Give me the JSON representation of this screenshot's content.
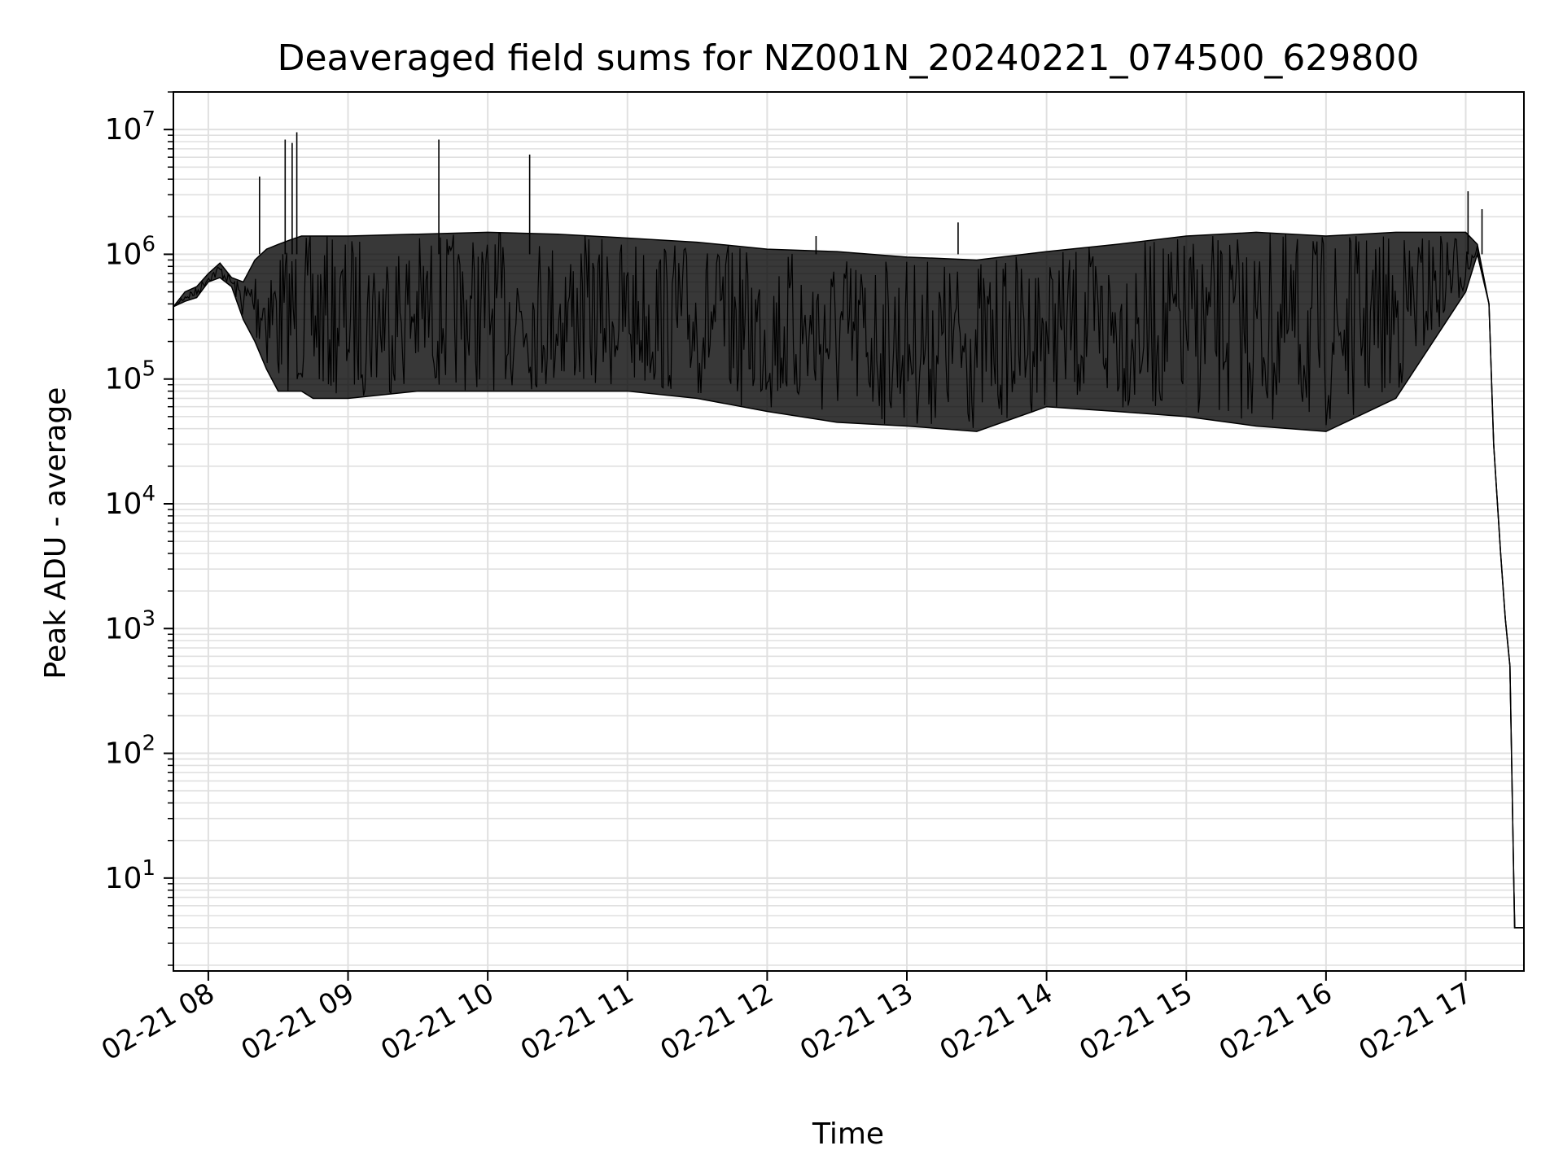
{
  "chart_data": {
    "type": "line",
    "title": "Deaveraged field sums for NZ001N_20240221_074500_629800",
    "xlabel": "Time",
    "ylabel": "Peak ADU - average",
    "yscale": "log",
    "grid": true,
    "grid_which": "both",
    "line_color": "#000000",
    "grid_color": "#e0e0e0",
    "xlim": [
      "2024-02-21 07:45",
      "2024-02-21 17:25"
    ],
    "ylim": [
      1.8,
      20000000
    ],
    "x_ticks": [
      "2024-02-21 08:00",
      "2024-02-21 09:00",
      "2024-02-21 10:00",
      "2024-02-21 11:00",
      "2024-02-21 12:00",
      "2024-02-21 13:00",
      "2024-02-21 14:00",
      "2024-02-21 15:00",
      "2024-02-21 16:00",
      "2024-02-21 17:00"
    ],
    "x_tick_labels": [
      "02-21 08",
      "02-21 09",
      "02-21 10",
      "02-21 11",
      "02-21 12",
      "02-21 13",
      "02-21 14",
      "02-21 15",
      "02-21 16",
      "02-21 17"
    ],
    "y_ticks": [
      {
        "value": 10,
        "base": "10",
        "exp": "1"
      },
      {
        "value": 100,
        "base": "10",
        "exp": "2"
      },
      {
        "value": 1000,
        "base": "10",
        "exp": "3"
      },
      {
        "value": 10000,
        "base": "10",
        "exp": "4"
      },
      {
        "value": 100000,
        "base": "10",
        "exp": "5"
      },
      {
        "value": 1000000,
        "base": "10",
        "exp": "6"
      },
      {
        "value": 10000000,
        "base": "10",
        "exp": "7"
      }
    ],
    "series": [
      {
        "x": [
          "2024-02-21 07:45",
          "2024-02-21 07:50",
          "2024-02-21 07:55",
          "2024-02-21 08:00",
          "2024-02-21 08:05",
          "2024-02-21 08:10",
          "2024-02-21 08:15",
          "2024-02-21 08:20",
          "2024-02-21 08:25",
          "2024-02-21 08:30",
          "2024-02-21 08:35",
          "2024-02-21 08:40",
          "2024-02-21 08:45",
          "2024-02-21 09:00",
          "2024-02-21 09:30",
          "2024-02-21 10:00",
          "2024-02-21 10:30",
          "2024-02-21 11:00",
          "2024-02-21 11:30",
          "2024-02-21 12:00",
          "2024-02-21 12:30",
          "2024-02-21 13:00",
          "2024-02-21 13:30",
          "2024-02-21 14:00",
          "2024-02-21 14:30",
          "2024-02-21 15:00",
          "2024-02-21 15:30",
          "2024-02-21 16:00",
          "2024-02-21 16:30",
          "2024-02-21 17:00",
          "2024-02-21 17:05",
          "2024-02-21 17:10",
          "2024-02-21 17:12",
          "2024-02-21 17:15",
          "2024-02-21 17:17",
          "2024-02-21 17:19",
          "2024-02-21 17:21",
          "2024-02-21 17:25"
        ],
        "upper": [
          380000,
          500000,
          550000,
          700000,
          850000,
          650000,
          600000,
          900000,
          1100000,
          1200000,
          1300000,
          1400000,
          1400000,
          1400000,
          1450000,
          1500000,
          1450000,
          1350000,
          1250000,
          1100000,
          1050000,
          950000,
          900000,
          1050000,
          1200000,
          1400000,
          1500000,
          1400000,
          1500000,
          1500000,
          1200000,
          400000,
          30000,
          4000,
          1200,
          500,
          4,
          4
        ],
        "lower": [
          380000,
          420000,
          450000,
          600000,
          650000,
          550000,
          300000,
          200000,
          120000,
          80000,
          80000,
          80000,
          70000,
          70000,
          80000,
          80000,
          80000,
          80000,
          70000,
          55000,
          45000,
          42000,
          38000,
          60000,
          55000,
          50000,
          42000,
          38000,
          70000,
          500000,
          1000000,
          400000,
          30000,
          4000,
          1200,
          500,
          4,
          4
        ]
      }
    ],
    "spikes": [
      {
        "x": "2024-02-21 08:22",
        "y": 4200000
      },
      {
        "x": "2024-02-21 08:33",
        "y": 8300000
      },
      {
        "x": "2024-02-21 08:36",
        "y": 7800000
      },
      {
        "x": "2024-02-21 08:38",
        "y": 9500000
      },
      {
        "x": "2024-02-21 09:39",
        "y": 8300000
      },
      {
        "x": "2024-02-21 10:18",
        "y": 6300000
      },
      {
        "x": "2024-02-21 12:21",
        "y": 1400000
      },
      {
        "x": "2024-02-21 13:22",
        "y": 1800000
      },
      {
        "x": "2024-02-21 17:01",
        "y": 3200000
      },
      {
        "x": "2024-02-21 17:07",
        "y": 2300000
      }
    ]
  }
}
